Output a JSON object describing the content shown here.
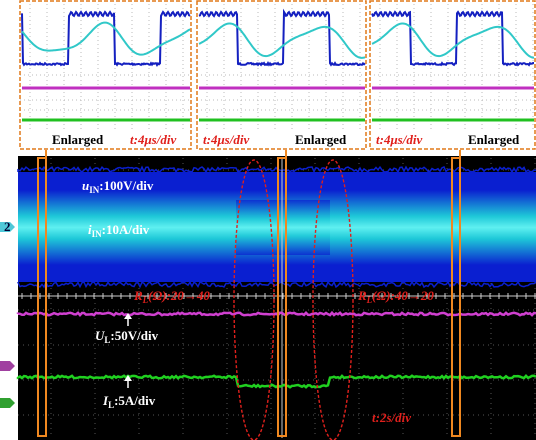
{
  "zoom_panels": [
    {
      "labels": [
        "Enlarged",
        "t:4μs/div"
      ]
    },
    {
      "labels": [
        "t:4μs/div",
        "Enlarged"
      ]
    },
    {
      "labels": [
        "t:4μs/div",
        "Enlarged"
      ]
    }
  ],
  "channel_marker": "2",
  "traces": [
    {
      "symbol": "u",
      "subscript": "IN",
      "scale": ":100V/div"
    },
    {
      "symbol": "i",
      "subscript": "IN",
      "scale": ":10A/div"
    },
    {
      "symbol": "U",
      "subscript": "L",
      "scale": ":50V/div"
    },
    {
      "symbol": "I",
      "subscript": "L",
      "scale": ":5A/div"
    }
  ],
  "load_steps": [
    {
      "symbol": "R",
      "subscript": "L",
      "change": "(Ω):20→40"
    },
    {
      "symbol": "R",
      "subscript": "L",
      "change": "(Ω):40→20"
    }
  ],
  "time_scale": "t:2s/div"
}
